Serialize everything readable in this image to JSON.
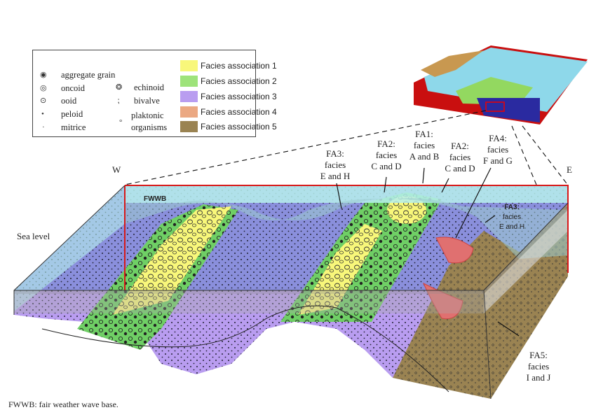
{
  "legend": {
    "grains": [
      {
        "label": "aggregate grain",
        "icon": "aggregate-grain-icon"
      },
      {
        "label": "oncoid",
        "icon": "oncoid-icon"
      },
      {
        "label": "ooid",
        "icon": "ooid-icon"
      },
      {
        "label": "peloid",
        "icon": "peloid-icon"
      },
      {
        "label": "mitrice",
        "icon": "mitrice-icon"
      },
      {
        "label": "echinoid",
        "icon": "echinoid-icon"
      },
      {
        "label": "bivalve",
        "icon": "bivalve-icon"
      },
      {
        "label": "plaktonic",
        "icon": "plaktonic-organism-icon"
      },
      {
        "label": "organisms"
      }
    ],
    "facies": [
      {
        "label": "Facies association 1",
        "color": "#f8f77a"
      },
      {
        "label": "Facies association 2",
        "color": "#9ee37a"
      },
      {
        "label": "Facies association 3",
        "color": "#b99df0"
      },
      {
        "label": "Facies association 4",
        "color": "#eba882"
      },
      {
        "label": "Facies association 5",
        "color": "#9a8352"
      }
    ]
  },
  "labels": {
    "west": "W",
    "east": "E",
    "fwwb": "FWWB",
    "sea_level": "Sea level",
    "fa3_left": [
      "FA3:",
      "facies",
      "E and H"
    ],
    "fa2_left": [
      "FA2:",
      "facies",
      "C and D"
    ],
    "fa1": [
      "FA1:",
      "facies",
      "A and B"
    ],
    "fa2_right": [
      "FA2:",
      "facies",
      "C and D"
    ],
    "fa4": [
      "FA4:",
      "facies",
      "F and G"
    ],
    "fa3_right": [
      "FA3:",
      "facies",
      "E and H"
    ],
    "fa5": [
      "FA5:",
      "facies",
      "I and J"
    ]
  },
  "footnote": "FWWB: fair weather wave base."
}
